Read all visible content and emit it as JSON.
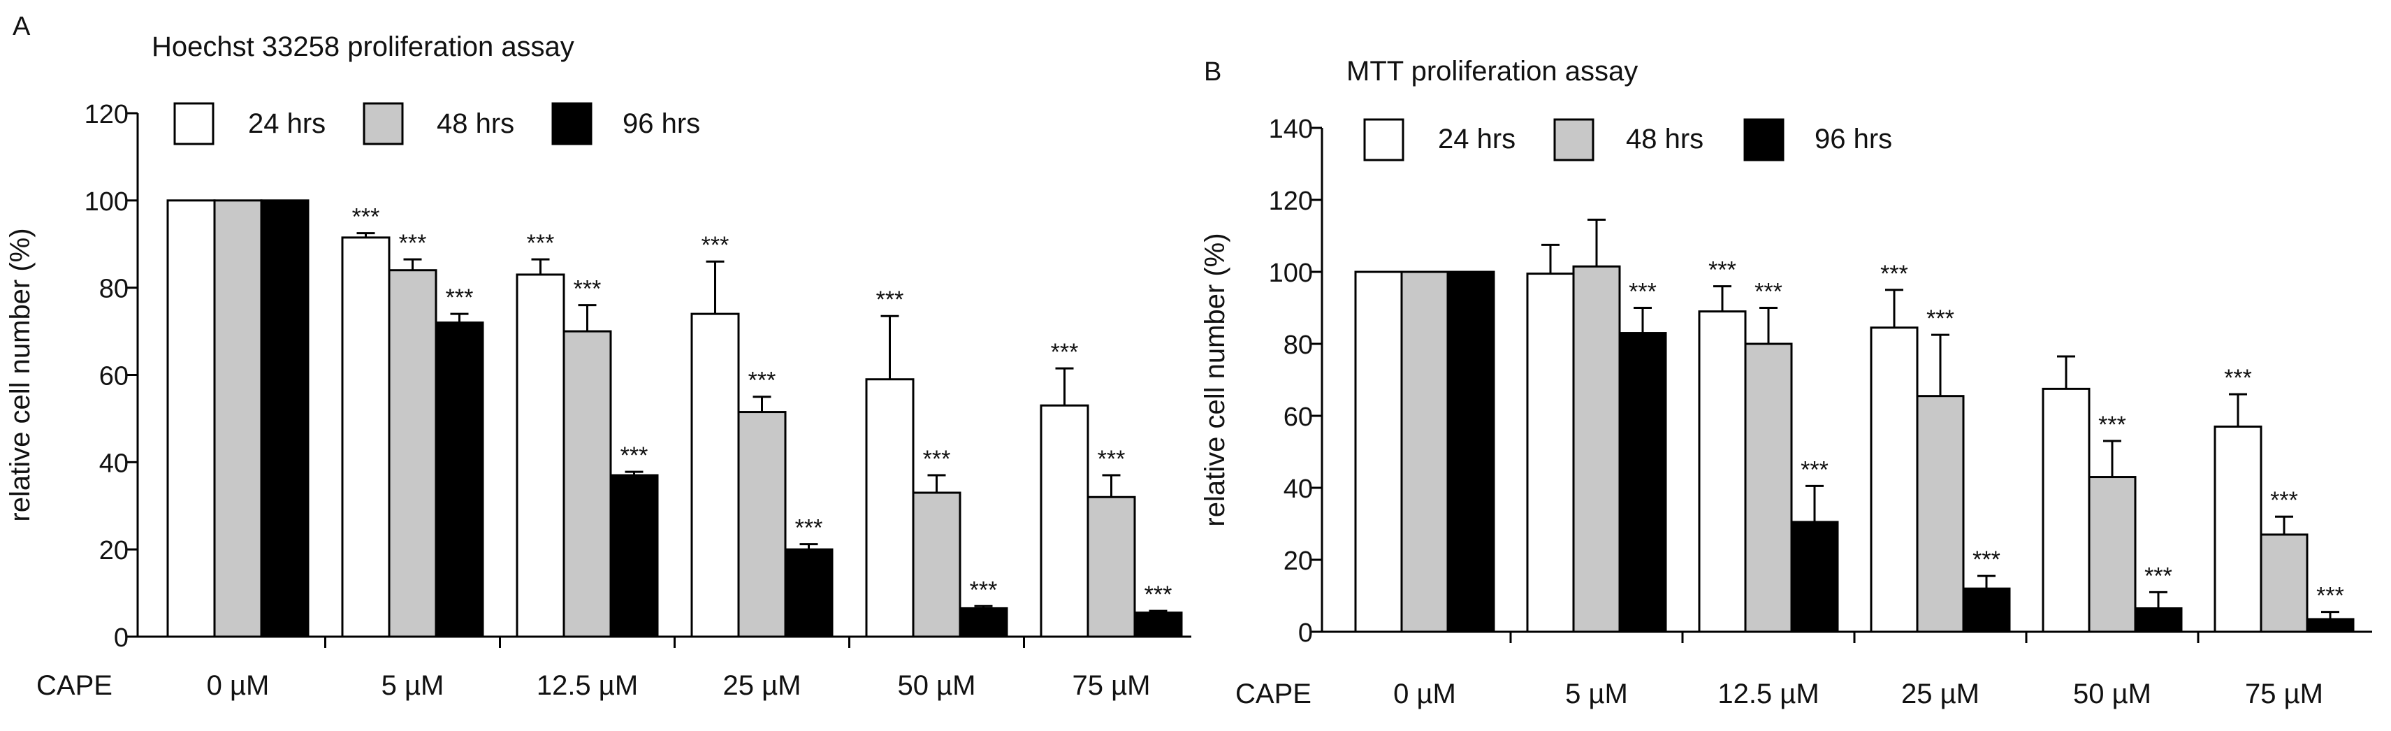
{
  "colors": {
    "h24": "#ffffff",
    "h48": "#c8c8c8",
    "h96": "#000000",
    "stroke": "#000000"
  },
  "chart_data": [
    {
      "panel_label": "A",
      "type": "bar",
      "title": "Hoechst 33258 proliferation assay",
      "ylabel": "relative cell number  (%)",
      "xaxis_title": "CAPE",
      "ylim": [
        0,
        120
      ],
      "yticks": [
        0,
        20,
        40,
        60,
        80,
        100,
        120
      ],
      "grid": false,
      "legend_position": "top-left",
      "categories": [
        "0 µM",
        "5 µM",
        "12.5 µM",
        "25 µM",
        "50 µM",
        "75 µM"
      ],
      "series": [
        {
          "name": "24 hrs",
          "color": "#ffffff",
          "values": [
            100,
            91.5,
            83,
            74,
            59,
            53
          ],
          "errors": [
            0,
            1,
            3.5,
            12,
            14.5,
            8.5
          ],
          "stars": [
            "",
            "***",
            "***",
            "***",
            "***",
            "***"
          ]
        },
        {
          "name": "48 hrs",
          "color": "#c8c8c8",
          "values": [
            100,
            84,
            70,
            51.5,
            33,
            32
          ],
          "errors": [
            0,
            2.5,
            6,
            3.5,
            4,
            5
          ],
          "stars": [
            "",
            "***",
            "***",
            "***",
            "***",
            "***"
          ]
        },
        {
          "name": "96 hrs",
          "color": "#000000",
          "values": [
            100,
            72,
            37,
            20,
            6.5,
            5.5
          ],
          "errors": [
            0,
            2,
            0.8,
            1.2,
            0.5,
            0.4
          ],
          "stars": [
            "",
            "***",
            "***",
            "***",
            "***",
            "***"
          ]
        }
      ]
    },
    {
      "panel_label": "B",
      "type": "bar",
      "title": "MTT proliferation assay",
      "ylabel": "relative cell number  (%)",
      "xaxis_title": "CAPE",
      "ylim": [
        0,
        140
      ],
      "yticks": [
        0,
        20,
        40,
        60,
        80,
        100,
        120,
        140
      ],
      "grid": false,
      "legend_position": "top-left",
      "categories": [
        "0 µM",
        "5 µM",
        "12.5 µM",
        "25 µM",
        "50 µM",
        "75 µM"
      ],
      "series": [
        {
          "name": "24 hrs",
          "color": "#ffffff",
          "values": [
            100,
            99.5,
            89,
            84.5,
            67.5,
            57
          ],
          "errors": [
            0,
            8,
            7,
            10.5,
            9,
            9
          ],
          "stars": [
            "",
            "",
            "***",
            "***",
            "",
            "***"
          ]
        },
        {
          "name": "48 hrs",
          "color": "#c8c8c8",
          "values": [
            100,
            101.5,
            80,
            65.5,
            43,
            27
          ],
          "errors": [
            0,
            13,
            10,
            17,
            10,
            5
          ],
          "stars": [
            "",
            "",
            "***",
            "***",
            "***",
            "***"
          ]
        },
        {
          "name": "96 hrs",
          "color": "#000000",
          "values": [
            100,
            83,
            30.5,
            12,
            6.5,
            3.5
          ],
          "errors": [
            0,
            7,
            10,
            3.5,
            4.5,
            2
          ],
          "stars": [
            "",
            "***",
            "***",
            "***",
            "***",
            "***"
          ]
        }
      ]
    }
  ]
}
